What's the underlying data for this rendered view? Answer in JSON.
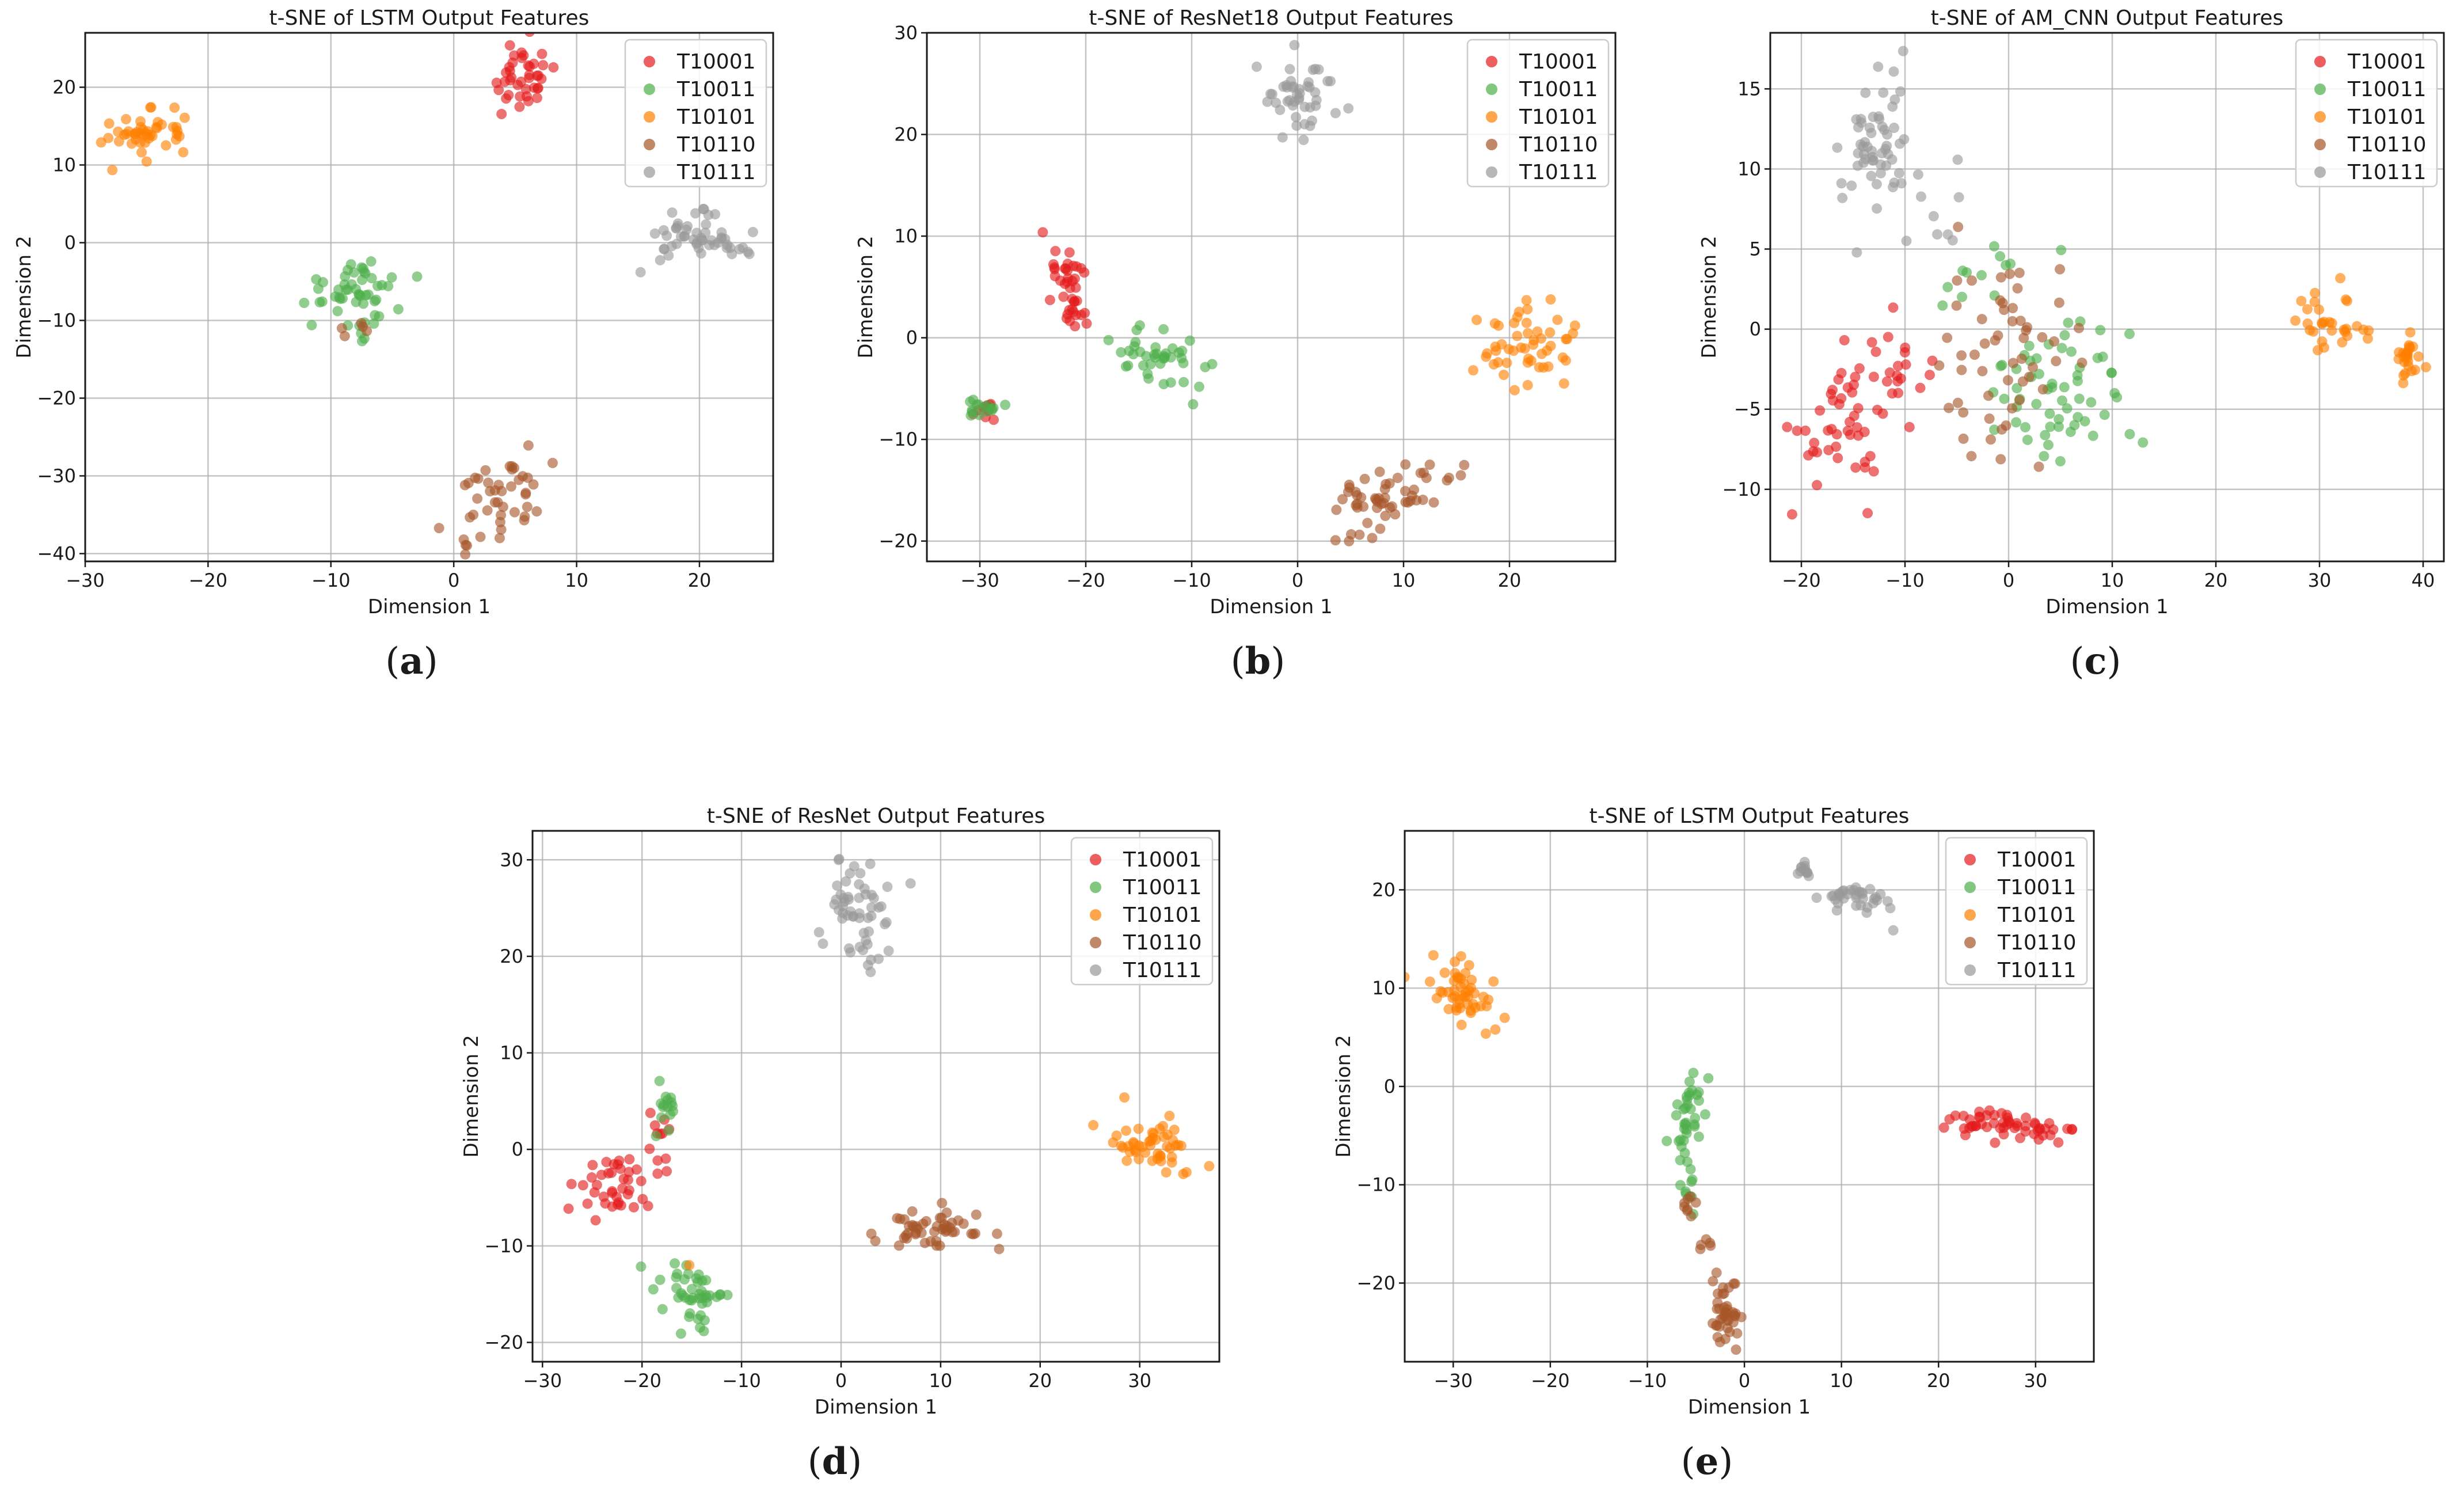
{
  "figure": {
    "colors": {
      "T10001": "#e41a1c",
      "T10011": "#4daf4a",
      "T10101": "#ff7f00",
      "T10110": "#a65628",
      "T10111": "#999999"
    },
    "legend_labels": [
      "T10001",
      "T10011",
      "T10101",
      "T10110",
      "T10111"
    ],
    "xlabel": "Dimension 1",
    "ylabel": "Dimension 2"
  },
  "chart_data": [
    {
      "type": "scatter",
      "panel": "a",
      "title": "t-SNE of LSTM Output Features",
      "xlabel": "Dimension 1",
      "ylabel": "Dimension 2",
      "xlim": [
        -30,
        26
      ],
      "ylim": [
        -41,
        27
      ],
      "xticks": [
        -30,
        -20,
        -10,
        0,
        10,
        20
      ],
      "yticks": [
        -40,
        -30,
        -20,
        -10,
        0,
        10,
        20
      ],
      "legend": [
        "T10001",
        "T10011",
        "T10101",
        "T10110",
        "T10111"
      ],
      "series": [
        {
          "name": "T10001",
          "clusters": [
            {
              "cx": 5.5,
              "cy": 21,
              "sx": 1.4,
              "sy": 2.5,
              "n": 40,
              "rot": 0
            }
          ]
        },
        {
          "name": "T10011",
          "clusters": [
            {
              "cx": -8,
              "cy": -5.5,
              "sx": 2.2,
              "sy": 1.6,
              "n": 45,
              "rot": 10
            },
            {
              "cx": -7.5,
              "cy": -10.5,
              "sx": 0.8,
              "sy": 0.9,
              "n": 8,
              "rot": 0
            }
          ]
        },
        {
          "name": "T10101",
          "clusters": [
            {
              "cx": -24.5,
              "cy": 14,
              "sx": 1.8,
              "sy": 1.6,
              "n": 45,
              "rot": 20
            }
          ]
        },
        {
          "name": "T10110",
          "clusters": [
            {
              "cx": 3.5,
              "cy": -32.5,
              "sx": 1.8,
              "sy": 2.5,
              "n": 45,
              "rot": -30
            },
            {
              "cx": -8,
              "cy": -11,
              "sx": 0.5,
              "sy": 1,
              "n": 5,
              "rot": 0
            }
          ]
        },
        {
          "name": "T10111",
          "clusters": [
            {
              "cx": 19.5,
              "cy": 0.5,
              "sx": 2.2,
              "sy": 1.5,
              "n": 45,
              "rot": 0
            },
            {
              "cx": 23,
              "cy": -0.5,
              "sx": 0.8,
              "sy": 0.6,
              "n": 8,
              "rot": 0
            }
          ]
        }
      ]
    },
    {
      "type": "scatter",
      "panel": "b",
      "title": "t-SNE of ResNet18 Output Features",
      "xlabel": "Dimension 1",
      "ylabel": "Dimension 2",
      "xlim": [
        -35,
        30
      ],
      "ylim": [
        -22,
        30
      ],
      "xticks": [
        -30,
        -20,
        -10,
        0,
        10,
        20
      ],
      "yticks": [
        -20,
        -10,
        0,
        10,
        20,
        30
      ],
      "legend": [
        "T10001",
        "T10011",
        "T10101",
        "T10110",
        "T10111"
      ],
      "series": [
        {
          "name": "T10001",
          "clusters": [
            {
              "cx": -21.5,
              "cy": 5,
              "sx": 0.9,
              "sy": 3,
              "n": 40,
              "rot": 15
            },
            {
              "cx": -29.5,
              "cy": -7,
              "sx": 0.8,
              "sy": 0.6,
              "n": 10,
              "rot": 0
            }
          ]
        },
        {
          "name": "T10011",
          "clusters": [
            {
              "cx": -13,
              "cy": -2.5,
              "sx": 2.5,
              "sy": 1.2,
              "n": 40,
              "rot": -25
            },
            {
              "cx": -30,
              "cy": -7,
              "sx": 1,
              "sy": 0.6,
              "n": 15,
              "rot": 0
            }
          ]
        },
        {
          "name": "T10101",
          "clusters": [
            {
              "cx": 22,
              "cy": -1,
              "sx": 2.2,
              "sy": 2.3,
              "n": 50,
              "rot": 0
            }
          ]
        },
        {
          "name": "T10110",
          "clusters": [
            {
              "cx": 9,
              "cy": -15.5,
              "sx": 3,
              "sy": 1.6,
              "n": 55,
              "rot": 30
            }
          ]
        },
        {
          "name": "T10111",
          "clusters": [
            {
              "cx": 0,
              "cy": 24,
              "sx": 1.7,
              "sy": 2,
              "n": 45,
              "rot": 40
            }
          ]
        }
      ]
    },
    {
      "type": "scatter",
      "panel": "c",
      "title": "t-SNE of AM_CNN Output Features",
      "xlabel": "Dimension 1",
      "ylabel": "Dimension 2",
      "xlim": [
        -23,
        42
      ],
      "ylim": [
        -14.5,
        18.5
      ],
      "xticks": [
        -20,
        -10,
        0,
        10,
        20,
        30,
        40
      ],
      "yticks": [
        -10,
        -5,
        0,
        5,
        10,
        15
      ],
      "legend": [
        "T10001",
        "T10011",
        "T10101",
        "T10110",
        "T10111"
      ],
      "series": [
        {
          "name": "T10001",
          "clusters": [
            {
              "cx": -16.5,
              "cy": -6.5,
              "sx": 2.3,
              "sy": 2,
              "n": 45,
              "rot": 20
            },
            {
              "cx": -11.5,
              "cy": -3,
              "sx": 1.6,
              "sy": 1.6,
              "n": 20,
              "rot": 0
            }
          ]
        },
        {
          "name": "T10011",
          "clusters": [
            {
              "cx": 4.5,
              "cy": -4,
              "sx": 3.2,
              "sy": 2.2,
              "n": 60,
              "rot": 0
            },
            {
              "cx": -2,
              "cy": 3.5,
              "sx": 2.5,
              "sy": 1.2,
              "n": 12,
              "rot": 0
            }
          ]
        },
        {
          "name": "T10101",
          "clusters": [
            {
              "cx": 31,
              "cy": 0,
              "sx": 1.8,
              "sy": 1.1,
              "n": 30,
              "rot": -10
            },
            {
              "cx": 38.5,
              "cy": -2,
              "sx": 0.6,
              "sy": 1.2,
              "n": 25,
              "rot": 0
            }
          ]
        },
        {
          "name": "T10110",
          "clusters": [
            {
              "cx": -1,
              "cy": -1,
              "sx": 3.8,
              "sy": 3.5,
              "n": 55,
              "rot": 0
            }
          ]
        },
        {
          "name": "T10111",
          "clusters": [
            {
              "cx": -13,
              "cy": 11,
              "sx": 1.5,
              "sy": 2.8,
              "n": 55,
              "rot": -15
            },
            {
              "cx": -7,
              "cy": 7,
              "sx": 1.6,
              "sy": 1.8,
              "n": 10,
              "rot": 0
            }
          ]
        }
      ]
    },
    {
      "type": "scatter",
      "panel": "d",
      "title": "t-SNE of ResNet Output Features",
      "xlabel": "Dimension 1",
      "ylabel": "Dimension 2",
      "xlim": [
        -31,
        38
      ],
      "ylim": [
        -22,
        33
      ],
      "xticks": [
        -30,
        -20,
        -10,
        0,
        10,
        20,
        30
      ],
      "yticks": [
        -20,
        -10,
        0,
        10,
        20,
        30
      ],
      "legend": [
        "T10001",
        "T10011",
        "T10101",
        "T10110",
        "T10111"
      ],
      "series": [
        {
          "name": "T10001",
          "clusters": [
            {
              "cx": -22.5,
              "cy": -4,
              "sx": 2.3,
              "sy": 1.6,
              "n": 40,
              "rot": 35
            },
            {
              "cx": -18.5,
              "cy": 1.5,
              "sx": 0.6,
              "sy": 2,
              "n": 10,
              "rot": 0
            }
          ]
        },
        {
          "name": "T10011",
          "clusters": [
            {
              "cx": -14.5,
              "cy": -15.5,
              "sx": 1.6,
              "sy": 2.3,
              "n": 45,
              "rot": 30
            },
            {
              "cx": -17.5,
              "cy": 4.5,
              "sx": 0.6,
              "sy": 1,
              "n": 15,
              "rot": 0
            }
          ]
        },
        {
          "name": "T10101",
          "clusters": [
            {
              "cx": 31,
              "cy": 0.5,
              "sx": 2.2,
              "sy": 1.4,
              "n": 50,
              "rot": -20
            },
            {
              "cx": -15,
              "cy": -12,
              "sx": 0.2,
              "sy": 0.2,
              "n": 1,
              "rot": 0
            }
          ]
        },
        {
          "name": "T10110",
          "clusters": [
            {
              "cx": 9.5,
              "cy": -8,
              "sx": 2.5,
              "sy": 1.2,
              "n": 50,
              "rot": 5
            }
          ]
        },
        {
          "name": "T10111",
          "clusters": [
            {
              "cx": 2,
              "cy": 25,
              "sx": 1.7,
              "sy": 3,
              "n": 55,
              "rot": 0
            }
          ]
        }
      ]
    },
    {
      "type": "scatter",
      "panel": "e",
      "title": "t-SNE of LSTM Output Features",
      "xlabel": "Dimension 1",
      "ylabel": "Dimension 2",
      "xlim": [
        -35,
        36
      ],
      "ylim": [
        -28,
        26
      ],
      "xticks": [
        -30,
        -20,
        -10,
        0,
        10,
        20,
        30
      ],
      "yticks": [
        -20,
        -10,
        0,
        10,
        20
      ],
      "legend": [
        "T10001",
        "T10011",
        "T10101",
        "T10110",
        "T10111"
      ],
      "series": [
        {
          "name": "T10001",
          "clusters": [
            {
              "cx": 27,
              "cy": -4,
              "sx": 3,
              "sy": 0.7,
              "n": 55,
              "rot": -5
            }
          ]
        },
        {
          "name": "T10011",
          "clusters": [
            {
              "cx": -5.5,
              "cy": -3,
              "sx": 0.9,
              "sy": 2.8,
              "n": 35,
              "rot": -10
            },
            {
              "cx": -5.8,
              "cy": -10,
              "sx": 0.6,
              "sy": 1.5,
              "n": 10,
              "rot": 0
            }
          ]
        },
        {
          "name": "T10101",
          "clusters": [
            {
              "cx": -29,
              "cy": 9.5,
              "sx": 2.2,
              "sy": 1.4,
              "n": 50,
              "rot": -35
            }
          ]
        },
        {
          "name": "T10110",
          "clusters": [
            {
              "cx": -1.8,
              "cy": -23,
              "sx": 0.8,
              "sy": 1.6,
              "n": 40,
              "rot": 0
            },
            {
              "cx": -5.5,
              "cy": -12,
              "sx": 0.5,
              "sy": 0.8,
              "n": 8,
              "rot": 0
            },
            {
              "cx": -4,
              "cy": -16,
              "sx": 0.3,
              "sy": 0.8,
              "n": 5,
              "rot": 0
            }
          ]
        },
        {
          "name": "T10111",
          "clusters": [
            {
              "cx": 11.5,
              "cy": 19,
              "sx": 2,
              "sy": 0.7,
              "n": 35,
              "rot": 0
            },
            {
              "cx": 6,
              "cy": 22,
              "sx": 0.5,
              "sy": 0.4,
              "n": 12,
              "rot": 0
            }
          ]
        }
      ]
    }
  ],
  "subfigure_labels": [
    {
      "open": "(",
      "letter": "a",
      "close": ")"
    },
    {
      "open": "(",
      "letter": "b",
      "close": ")"
    },
    {
      "open": "(",
      "letter": "c",
      "close": ")"
    },
    {
      "open": "(",
      "letter": "d",
      "close": ")"
    },
    {
      "open": "(",
      "letter": "e",
      "close": ")"
    }
  ]
}
